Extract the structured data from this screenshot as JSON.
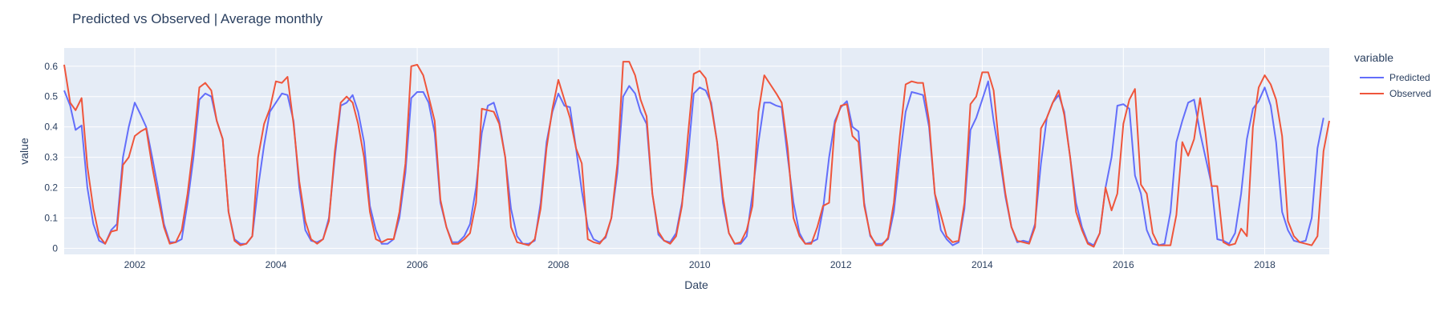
{
  "chart_data": {
    "type": "line",
    "title": "Predicted vs Observed | Average monthly",
    "xlabel": "Date",
    "ylabel": "value",
    "xlim": [
      "2001-01-01",
      "2018-12-01"
    ],
    "ylim": [
      -0.02,
      0.66
    ],
    "x_ticks": [
      "2002",
      "2004",
      "2006",
      "2008",
      "2010",
      "2012",
      "2014",
      "2016",
      "2018"
    ],
    "y_ticks": [
      "0",
      "0.1",
      "0.2",
      "0.3",
      "0.4",
      "0.5",
      "0.6"
    ],
    "grid": true,
    "legend": {
      "title": "variable",
      "position": "right"
    },
    "colors": {
      "plot_bg": "#e5ecf6",
      "grid": "#ffffff",
      "predicted": "#636efa",
      "observed": "#ef553b"
    },
    "start": "2001-01",
    "frequency": "monthly",
    "series": [
      {
        "name": "Predicted",
        "values": [
          0.52,
          0.47,
          0.39,
          0.405,
          0.2,
          0.08,
          0.025,
          0.015,
          0.06,
          0.08,
          0.3,
          0.4,
          0.48,
          0.44,
          0.4,
          0.3,
          0.2,
          0.08,
          0.02,
          0.02,
          0.03,
          0.15,
          0.3,
          0.49,
          0.51,
          0.5,
          0.42,
          0.36,
          0.12,
          0.03,
          0.015,
          0.015,
          0.04,
          0.2,
          0.34,
          0.45,
          0.48,
          0.51,
          0.505,
          0.42,
          0.2,
          0.06,
          0.025,
          0.02,
          0.03,
          0.1,
          0.3,
          0.47,
          0.48,
          0.505,
          0.45,
          0.35,
          0.14,
          0.06,
          0.015,
          0.015,
          0.03,
          0.1,
          0.25,
          0.495,
          0.515,
          0.515,
          0.48,
          0.38,
          0.15,
          0.07,
          0.02,
          0.02,
          0.04,
          0.08,
          0.2,
          0.38,
          0.47,
          0.48,
          0.42,
          0.3,
          0.13,
          0.04,
          0.015,
          0.015,
          0.025,
          0.15,
          0.35,
          0.45,
          0.51,
          0.47,
          0.465,
          0.33,
          0.19,
          0.07,
          0.03,
          0.02,
          0.035,
          0.1,
          0.25,
          0.5,
          0.535,
          0.51,
          0.45,
          0.41,
          0.18,
          0.045,
          0.025,
          0.02,
          0.05,
          0.15,
          0.3,
          0.51,
          0.53,
          0.52,
          0.48,
          0.35,
          0.15,
          0.05,
          0.015,
          0.015,
          0.04,
          0.18,
          0.35,
          0.48,
          0.48,
          0.47,
          0.465,
          0.3,
          0.15,
          0.05,
          0.015,
          0.02,
          0.03,
          0.13,
          0.3,
          0.42,
          0.465,
          0.485,
          0.4,
          0.385,
          0.15,
          0.04,
          0.015,
          0.015,
          0.03,
          0.12,
          0.3,
          0.45,
          0.515,
          0.51,
          0.505,
          0.4,
          0.18,
          0.06,
          0.03,
          0.01,
          0.02,
          0.13,
          0.39,
          0.43,
          0.49,
          0.55,
          0.42,
          0.3,
          0.17,
          0.07,
          0.02,
          0.025,
          0.02,
          0.08,
          0.28,
          0.43,
          0.48,
          0.505,
          0.45,
          0.3,
          0.15,
          0.07,
          0.02,
          0.01,
          0.05,
          0.2,
          0.3,
          0.47,
          0.475,
          0.46,
          0.24,
          0.18,
          0.06,
          0.015,
          0.01,
          0.015,
          0.12,
          0.35,
          0.42,
          0.48,
          0.49,
          0.38,
          0.3,
          0.21,
          0.03,
          0.025,
          0.015,
          0.05,
          0.18,
          0.36,
          0.46,
          0.485,
          0.53,
          0.47,
          0.35,
          0.12,
          0.06,
          0.025,
          0.02,
          0.025,
          0.1,
          0.33,
          0.43
        ]
      },
      {
        "name": "Observed",
        "values": [
          0.605,
          0.48,
          0.455,
          0.495,
          0.27,
          0.13,
          0.04,
          0.015,
          0.055,
          0.06,
          0.275,
          0.3,
          0.37,
          0.385,
          0.395,
          0.27,
          0.17,
          0.07,
          0.015,
          0.02,
          0.06,
          0.18,
          0.34,
          0.53,
          0.545,
          0.52,
          0.42,
          0.36,
          0.12,
          0.025,
          0.01,
          0.015,
          0.04,
          0.3,
          0.41,
          0.46,
          0.55,
          0.545,
          0.565,
          0.41,
          0.22,
          0.09,
          0.03,
          0.015,
          0.03,
          0.09,
          0.32,
          0.48,
          0.5,
          0.48,
          0.41,
          0.3,
          0.12,
          0.03,
          0.02,
          0.03,
          0.03,
          0.12,
          0.28,
          0.6,
          0.605,
          0.57,
          0.5,
          0.42,
          0.16,
          0.07,
          0.015,
          0.015,
          0.03,
          0.05,
          0.15,
          0.46,
          0.455,
          0.45,
          0.41,
          0.3,
          0.07,
          0.02,
          0.015,
          0.01,
          0.03,
          0.13,
          0.33,
          0.46,
          0.555,
          0.49,
          0.43,
          0.33,
          0.28,
          0.03,
          0.02,
          0.015,
          0.04,
          0.1,
          0.28,
          0.615,
          0.615,
          0.57,
          0.49,
          0.435,
          0.18,
          0.055,
          0.025,
          0.015,
          0.04,
          0.14,
          0.37,
          0.575,
          0.585,
          0.56,
          0.47,
          0.35,
          0.17,
          0.05,
          0.015,
          0.02,
          0.06,
          0.14,
          0.45,
          0.57,
          0.54,
          0.51,
          0.48,
          0.33,
          0.1,
          0.04,
          0.015,
          0.015,
          0.07,
          0.14,
          0.15,
          0.41,
          0.47,
          0.475,
          0.37,
          0.35,
          0.14,
          0.045,
          0.01,
          0.01,
          0.035,
          0.15,
          0.37,
          0.54,
          0.55,
          0.545,
          0.545,
          0.42,
          0.18,
          0.11,
          0.04,
          0.02,
          0.025,
          0.15,
          0.475,
          0.5,
          0.58,
          0.58,
          0.52,
          0.32,
          0.18,
          0.07,
          0.025,
          0.02,
          0.015,
          0.07,
          0.395,
          0.43,
          0.48,
          0.52,
          0.44,
          0.3,
          0.12,
          0.06,
          0.015,
          0.005,
          0.05,
          0.2,
          0.125,
          0.18,
          0.41,
          0.49,
          0.525,
          0.21,
          0.18,
          0.05,
          0.01,
          0.01,
          0.01,
          0.11,
          0.35,
          0.305,
          0.36,
          0.495,
          0.38,
          0.205,
          0.205,
          0.02,
          0.01,
          0.015,
          0.065,
          0.04,
          0.4,
          0.53,
          0.57,
          0.54,
          0.49,
          0.37,
          0.09,
          0.04,
          0.02,
          0.015,
          0.01,
          0.04,
          0.32,
          0.42
        ]
      }
    ]
  }
}
